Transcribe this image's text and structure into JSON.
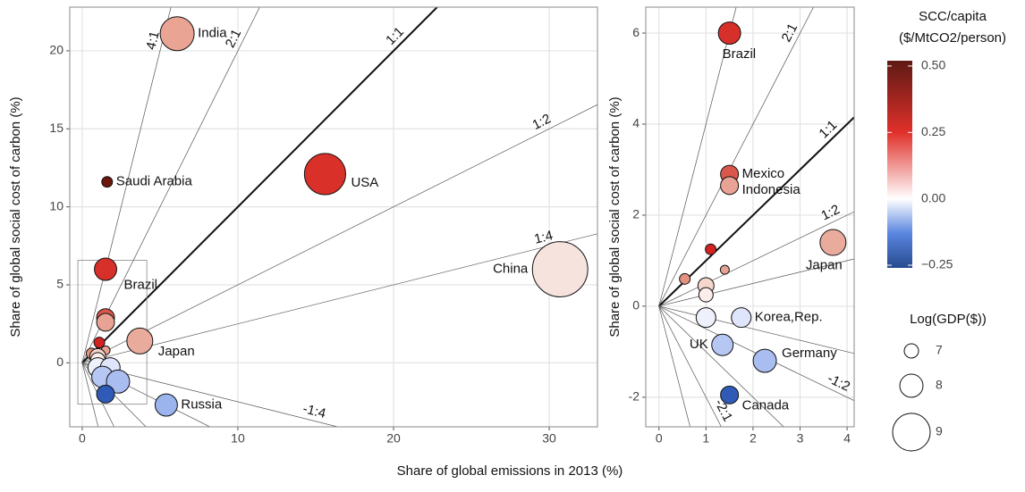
{
  "x_label": "Share of global emissions in 2013 (%)",
  "chart_data": [
    {
      "type": "bubble",
      "y_label": "Share of global social cost of carbon (%)",
      "xlim": [
        -0.8,
        33.1
      ],
      "ylim": [
        -4.1,
        22.8
      ],
      "xticks": [
        0,
        10,
        20,
        30
      ],
      "yticks": [
        0,
        5,
        10,
        15,
        20
      ],
      "grid": true,
      "ratio_lines": [
        {
          "slope": 4,
          "label": "4:1"
        },
        {
          "slope": 2,
          "label": "2:1"
        },
        {
          "slope": 1,
          "label": "1:1",
          "bold": true
        },
        {
          "slope": 0.5,
          "label": "1:2"
        },
        {
          "slope": 0.25,
          "label": "1:4"
        },
        {
          "slope": -0.25,
          "label": "-1:4"
        },
        {
          "slope": -0.5,
          "label": null
        },
        {
          "slope": -1,
          "label": null
        },
        {
          "slope": -2,
          "label": null
        },
        {
          "slope": -4,
          "label": null
        }
      ],
      "zoom_box": true,
      "labels": [
        "India",
        "Saudi Arabia",
        "USA",
        "Brazil",
        "China",
        "Japan",
        "Russia",
        null,
        null,
        null,
        null,
        null,
        null,
        null,
        null,
        null,
        null,
        null,
        null
      ],
      "x": [
        6.1,
        1.6,
        15.6,
        1.5,
        30.7,
        3.7,
        5.4,
        1.5,
        1.5,
        1.1,
        0.6,
        1.5,
        1.0,
        1.0,
        1.0,
        1.8,
        1.3,
        2.3,
        1.5
      ],
      "values": [
        21.1,
        11.6,
        12.1,
        6.0,
        6.0,
        1.4,
        -2.7,
        2.9,
        2.6,
        1.3,
        0.6,
        0.8,
        0.4,
        0.2,
        -0.3,
        -0.3,
        -0.9,
        -1.2,
        -2.0
      ],
      "sizes": [
        8.79,
        6.4,
        9.19,
        7.92,
        9.8,
        8.23,
        7.92,
        7.46,
        7.46,
        6.4,
        6.4,
        6.03,
        7.24,
        7.0,
        7.66,
        7.66,
        7.84,
        8.0,
        7.46
      ],
      "colors": [
        "#e9a494",
        "#6b170e",
        "#d9302a",
        "#d7302a",
        "#f7e3de",
        "#e9ab9b",
        "#9bb4ee",
        "#d9574b",
        "#e8a394",
        "#d22222",
        "#e4917f",
        "#e8a294",
        "#f4d6cc",
        "#fbeeea",
        "#eef0fb",
        "#dfe5fa",
        "#b5c7f2",
        "#a9bdf0",
        "#2f5bb7"
      ]
    },
    {
      "type": "bubble",
      "y_label": "Share of global social cost of carbon (%)",
      "xlim": [
        -0.28,
        4.15
      ],
      "ylim": [
        -2.65,
        6.57
      ],
      "xticks": [
        0,
        1,
        2,
        3,
        4
      ],
      "yticks": [
        -2,
        0,
        2,
        4,
        6
      ],
      "grid": true,
      "ratio_lines": [
        {
          "slope": 4,
          "label": null
        },
        {
          "slope": 2,
          "label": "2:1"
        },
        {
          "slope": 1,
          "label": "1:1",
          "bold": true
        },
        {
          "slope": 0.5,
          "label": "1:2"
        },
        {
          "slope": 0.25,
          "label": null
        },
        {
          "slope": -0.25,
          "label": null
        },
        {
          "slope": -0.5,
          "label": "-1:2"
        },
        {
          "slope": -1,
          "label": null
        },
        {
          "slope": -2,
          "label": "-2:1"
        },
        {
          "slope": -4,
          "label": null
        }
      ],
      "zoom_box": false,
      "labels": [
        "Brazil",
        "Mexico",
        "Indonesia",
        "Japan",
        null,
        null,
        null,
        null,
        null,
        null,
        "Korea,Rep.",
        "UK",
        "Germany",
        "Canada"
      ],
      "x": [
        1.5,
        1.5,
        1.5,
        3.7,
        1.1,
        0.55,
        1.4,
        1.0,
        1.0,
        1.0,
        1.75,
        1.35,
        2.25,
        1.5
      ],
      "values": [
        6.0,
        2.9,
        2.65,
        1.4,
        1.25,
        0.6,
        0.8,
        0.45,
        0.25,
        -0.25,
        -0.25,
        -0.85,
        -1.2,
        -1.95
      ],
      "sizes": [
        7.92,
        7.46,
        7.46,
        8.23,
        6.4,
        6.4,
        6.03,
        7.24,
        7.0,
        7.66,
        7.66,
        7.84,
        8.0,
        7.46
      ],
      "colors": [
        "#d7302a",
        "#d9574b",
        "#e8a394",
        "#e9ab9b",
        "#d22222",
        "#e4917f",
        "#e8a294",
        "#f4d6cc",
        "#fbeeea",
        "#eef0fb",
        "#dfe5fa",
        "#b5c7f2",
        "#a9bdf0",
        "#2f5bb7"
      ]
    }
  ],
  "color_legend": {
    "title": [
      "SCC/capita",
      "($/MtCO2/person)"
    ],
    "lim": [
      -0.26,
      0.52
    ],
    "ticks": [
      {
        "value": 0.5,
        "label": "0.50"
      },
      {
        "value": 0.25,
        "label": "0.25"
      },
      {
        "value": 0,
        "label": "0.00"
      },
      {
        "value": -0.25,
        "label": "−0.25"
      }
    ],
    "stops": [
      [
        -0.26,
        "#264a8e"
      ],
      [
        -0.13,
        "#5a86e0"
      ],
      [
        0,
        "#ffffff"
      ],
      [
        0.25,
        "#e0302a"
      ],
      [
        0.52,
        "#5e1a14"
      ]
    ]
  },
  "size_legend": {
    "title": "Log(GDP($))",
    "sizes": [
      7,
      8,
      9
    ]
  }
}
